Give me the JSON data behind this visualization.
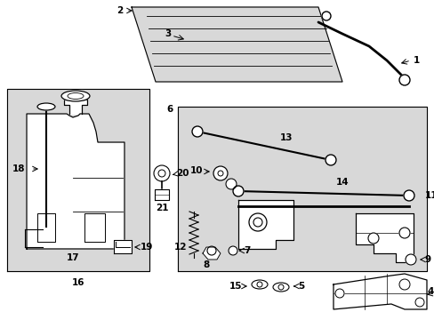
{
  "bg_color": "#ffffff",
  "box_fill": "#d8d8d8",
  "line_color": "#000000",
  "fig_width": 4.89,
  "fig_height": 3.6,
  "dpi": 100
}
